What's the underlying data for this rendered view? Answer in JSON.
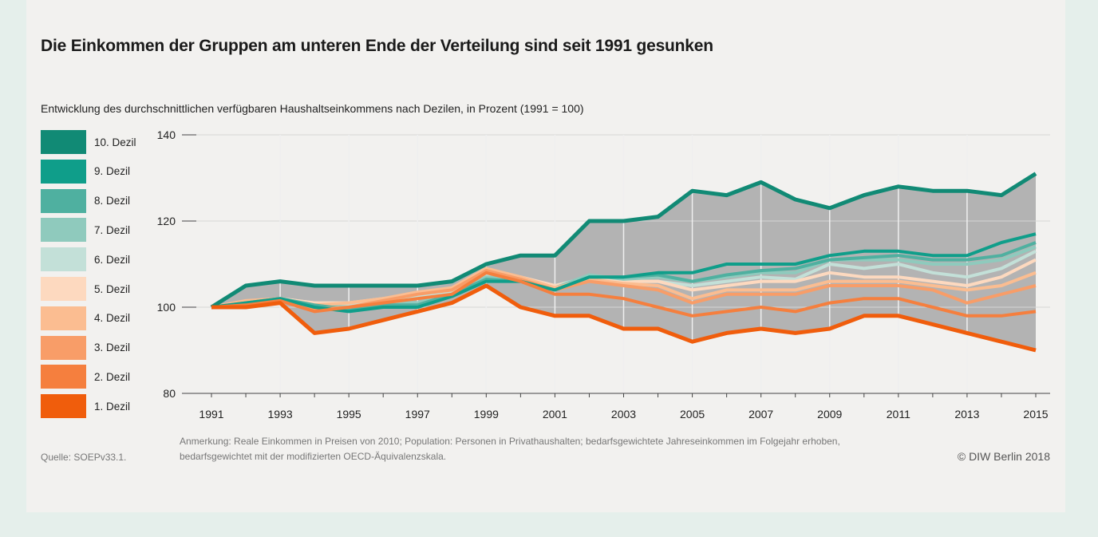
{
  "title": "Die Einkommen der Gruppen am unteren Ende der Verteilung sind seit 1991 gesunken",
  "subtitle": "Entwicklung des durchschnittlichen verfügbaren Haushaltseinkommens nach Dezilen, in Prozent (1991 = 100)",
  "footer": {
    "source": "Quelle: SOEPv33.1.",
    "note_line1": "Anmerkung: Reale Einkommen in Preisen von 2010; Population: Personen in Privathaushalten; bedarfsgewichtete Jahreseinkommen im Folgejahr erhoben,",
    "note_line2": "bedarfsgewichtet mit der modifizierten OECD-Äquivalenzskala.",
    "copyright": "© DIW Berlin 2018"
  },
  "chart_data": {
    "type": "line",
    "title": "Die Einkommen der Gruppen am unteren Ende der Verteilung sind seit 1991 gesunken",
    "ylabel": "Prozent (1991 = 100)",
    "ylim": [
      80,
      140
    ],
    "yticks": [
      80,
      100,
      120,
      140
    ],
    "xticks": [
      1991,
      1993,
      1995,
      1997,
      1999,
      2001,
      2003,
      2005,
      2007,
      2009,
      2011,
      2013,
      2015
    ],
    "x": [
      1991,
      1992,
      1993,
      1994,
      1995,
      1996,
      1997,
      1998,
      1999,
      2000,
      2001,
      2002,
      2003,
      2004,
      2005,
      2006,
      2007,
      2008,
      2009,
      2010,
      2011,
      2012,
      2013,
      2014,
      2015
    ],
    "legend_position": "left",
    "band_color": "#b3b3b3",
    "series": [
      {
        "name": "10. Dezil",
        "color": "#118a75",
        "values": [
          100,
          105,
          106,
          105,
          105,
          105,
          105,
          106,
          110,
          112,
          112,
          120,
          120,
          121,
          127,
          126,
          129,
          125,
          123,
          126,
          128,
          127,
          127,
          126,
          131
        ]
      },
      {
        "name": "9. Dezil",
        "color": "#0f9e8a",
        "values": [
          100,
          101,
          102,
          100,
          99,
          100,
          100,
          102.5,
          106,
          106,
          104,
          107,
          107,
          108,
          108,
          110,
          110,
          110,
          112,
          113,
          113,
          112,
          112,
          115,
          117
        ]
      },
      {
        "name": "8. Dezil",
        "color": "#4fb0a0",
        "values": [
          100,
          101,
          102,
          100.5,
          99.5,
          100.5,
          100.5,
          103,
          106.5,
          106,
          104,
          107,
          107,
          107.5,
          106,
          107.5,
          108.5,
          109,
          111,
          111.5,
          112,
          111,
          111,
          112,
          115
        ]
      },
      {
        "name": "7. Dezil",
        "color": "#8fcabd",
        "values": [
          100,
          101,
          102,
          100.5,
          100,
          101,
          101,
          103,
          107,
          106.5,
          104.5,
          107.5,
          106.5,
          107,
          106,
          107,
          108,
          108,
          111,
          111,
          111,
          110,
          110,
          111,
          114
        ]
      },
      {
        "name": "6. Dezil",
        "color": "#c3e0d8",
        "values": [
          100,
          101,
          102,
          101,
          100.5,
          101.5,
          102.5,
          103.5,
          107.5,
          106.5,
          105,
          107,
          106,
          106,
          105,
          106,
          107,
          106.5,
          110,
          109,
          110,
          108,
          107,
          109,
          113
        ]
      },
      {
        "name": "5. Dezil",
        "color": "#fdd9bf",
        "values": [
          100,
          101,
          102,
          101,
          101,
          102,
          103,
          104,
          108,
          107,
          105,
          106.5,
          106,
          106,
          104,
          105,
          106,
          106,
          108,
          107,
          107,
          106,
          105,
          107,
          111
        ]
      },
      {
        "name": "4. Dezil",
        "color": "#fbbd91",
        "values": [
          100,
          101.5,
          102,
          100.5,
          101,
          102,
          103.5,
          104.5,
          109,
          107,
          104.5,
          106.5,
          105.5,
          105,
          102,
          104,
          104,
          104,
          106,
          106,
          106,
          105,
          104,
          105,
          108
        ]
      },
      {
        "name": "3. Dezil",
        "color": "#f89d68",
        "values": [
          100,
          101,
          102,
          99.5,
          100,
          101.5,
          103,
          104,
          108.5,
          106.5,
          104,
          106,
          105,
          104,
          101,
          103,
          103,
          103,
          105,
          105,
          105,
          104,
          101,
          103,
          105
        ]
      },
      {
        "name": "2. Dezil",
        "color": "#f57f3e",
        "values": [
          100,
          100.5,
          101.5,
          99,
          100,
          101,
          102,
          103,
          108,
          106,
          103,
          103,
          102,
          100,
          98,
          99,
          100,
          99,
          101,
          102,
          102,
          100,
          98,
          98,
          99
        ]
      },
      {
        "name": "1. Dezil",
        "color": "#f05d0c",
        "values": [
          100,
          100,
          101,
          94,
          95,
          97,
          99,
          101,
          105,
          100,
          98,
          98,
          95,
          95,
          92,
          94,
          95,
          94,
          95,
          98,
          98,
          96,
          94,
          92,
          90
        ]
      }
    ]
  }
}
